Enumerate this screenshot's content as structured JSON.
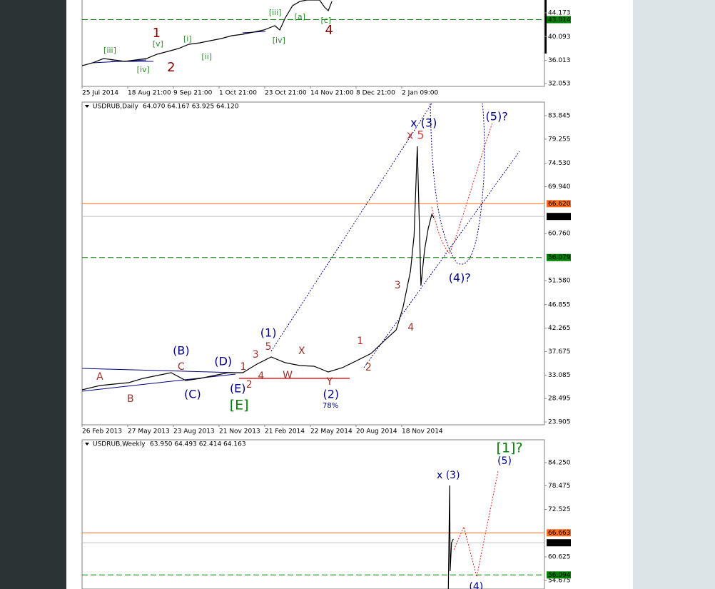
{
  "chart_data": [
    {
      "type": "line",
      "xlim": [
        0,
        10.125
      ],
      "ylim": [
        31.56,
        46.38
      ],
      "xticks": [
        {
          "value": 0,
          "label": "25 Jul 2014"
        },
        {
          "value": 1,
          "label": "18 Aug 21:00"
        },
        {
          "value": 2,
          "label": "9 Sep 21:00"
        },
        {
          "value": 3,
          "label": "1 Oct 21:00"
        },
        {
          "value": 4,
          "label": "23 Oct 21:00"
        },
        {
          "value": 5,
          "label": "14 Nov 21:00"
        },
        {
          "value": 6,
          "label": "8 Dec 21:00"
        },
        {
          "value": 7,
          "label": "2 Jan 09:00"
        }
      ],
      "yticks": [
        44.173,
        40.093,
        36.013,
        32.053
      ],
      "series": [
        {
          "color": "#000000",
          "x": [
            0,
            0.23,
            0.47,
            0.7,
            0.94,
            1.17,
            1.41,
            1.64,
            1.88,
            2.11,
            2.34,
            2.58,
            2.81,
            3.05,
            3.28,
            3.52,
            3.75,
            3.98,
            4.22,
            4.33,
            4.45,
            4.61,
            4.77,
            4.92,
            5.2,
            5.31,
            5.39,
            5.47
          ],
          "values": [
            35.11,
            35.6,
            36.34,
            36.09,
            35.85,
            36.09,
            36.34,
            37.07,
            37.56,
            38.05,
            38.79,
            39.03,
            39.4,
            39.77,
            40.26,
            40.5,
            40.87,
            41.23,
            41.97,
            41.23,
            43.32,
            45.4,
            46.13,
            46.38,
            46.38,
            45.15,
            44.54,
            46.13
          ]
        }
      ],
      "levels": [
        {
          "value": 43.014,
          "color": "#008000",
          "style": "dashed"
        }
      ],
      "annotations": [
        {
          "text": "[iii]",
          "x": 0.61,
          "y": 37.68,
          "color": "#2e8b2e"
        },
        {
          "text": "[iv]",
          "x": 1.34,
          "y": 34.38,
          "color": "#2e8b2e"
        },
        {
          "text": "[v]",
          "x": 1.66,
          "y": 38.79,
          "color": "#2e8b2e"
        },
        {
          "text": "1",
          "x": 1.63,
          "y": 40.62,
          "color": "#8b0000"
        },
        {
          "text": "2",
          "x": 1.95,
          "y": 34.75,
          "color": "#8b0000"
        },
        {
          "text": "[i]",
          "x": 2.31,
          "y": 39.64,
          "color": "#2e8b2e"
        },
        {
          "text": "[ii]",
          "x": 2.73,
          "y": 36.58,
          "color": "#2e8b2e"
        },
        {
          "text": "[iii]",
          "x": 4.23,
          "y": 44.17,
          "color": "#2e8b2e"
        },
        {
          "text": "[iv]",
          "x": 4.31,
          "y": 39.4,
          "color": "#2e8b2e"
        },
        {
          "text": "[a]",
          "x": 4.77,
          "y": 43.44,
          "color": "#2e8b2e"
        },
        {
          "text": "[c]",
          "x": 5.34,
          "y": 42.82,
          "color": "#2e8b2e"
        },
        {
          "text": "4",
          "x": 5.41,
          "y": 41.11,
          "color": "#8b0000"
        }
      ]
    },
    {
      "type": "line",
      "title": "USDRUB,Daily",
      "subtitle": "64.070 64.167 63.925 64.120",
      "xlim": [
        0,
        10.125
      ],
      "ylim": [
        23.35,
        86.5
      ],
      "xticks": [
        {
          "value": 0,
          "label": "26 Feb 2013"
        },
        {
          "value": 1,
          "label": "27 May 2013"
        },
        {
          "value": 2,
          "label": "23 Aug 2013"
        },
        {
          "value": 3,
          "label": "21 Nov 2013"
        },
        {
          "value": 4,
          "label": "21 Feb 2014"
        },
        {
          "value": 5,
          "label": "22 May 2014"
        },
        {
          "value": 6,
          "label": "20 Aug 2014"
        },
        {
          "value": 7,
          "label": "18 Nov 2014"
        }
      ],
      "yticks": [
        83.845,
        79.255,
        {
          "value": 74.53,
          "label": "74.530"
        },
        {
          "value": 69.94,
          "label": "69.940"
        },
        {
          "value": 60.76,
          "label": "60.760"
        },
        {
          "value": 51.58,
          "label": "51.580"
        },
        46.855,
        42.265,
        37.675,
        33.085,
        28.495,
        23.905
      ],
      "series": [
        {
          "color": "#000000",
          "x": [
            0,
            0.39,
            0.7,
            1.02,
            1.33,
            1.64,
            1.95,
            2.27,
            2.58,
            2.89,
            3.2,
            3.52,
            3.83,
            4.14,
            4.45,
            4.77,
            5.08,
            5.39,
            5.7,
            6.02,
            6.33,
            6.64,
            6.88,
            7.03,
            7.19,
            7.27,
            7.34,
            7.38,
            7.42,
            7.5,
            7.58,
            7.66,
            7.7
          ],
          "values": [
            30.19,
            31.03,
            31.31,
            31.59,
            32.42,
            32.99,
            33.55,
            32.01,
            32.42,
            32.99,
            33.55,
            33.55,
            35.22,
            36.62,
            35.5,
            34.94,
            34.8,
            33.69,
            34.53,
            35.92,
            37.32,
            39.97,
            41.93,
            46.4,
            53.39,
            60.37,
            77.84,
            64.56,
            50.59,
            57.58,
            61.77,
            64.56,
            63.87
          ]
        }
      ],
      "levels": [
        {
          "value": 66.62,
          "label": "66.620",
          "color": "#ff6a1a",
          "style": "solid"
        },
        {
          "value": 64.12,
          "label": "64.120",
          "color": "#c0c0c0",
          "style": "solid"
        },
        {
          "value": 56.079,
          "color": "#008000",
          "style": "dashed"
        }
      ],
      "annotations": [
        {
          "text": "A",
          "x": 0.39,
          "y": 32.71,
          "color": "#a0302a"
        },
        {
          "text": "B",
          "x": 1.06,
          "y": 28.38,
          "color": "#a0302a"
        },
        {
          "text": "C",
          "x": 2.17,
          "y": 34.66,
          "color": "#a0302a"
        },
        {
          "text": "(B)",
          "x": 2.17,
          "y": 37.74,
          "color": "#000080"
        },
        {
          "text": "(C)",
          "x": 2.42,
          "y": 29.21,
          "color": "#000080"
        },
        {
          "text": "(D)",
          "x": 3.09,
          "y": 35.64,
          "color": "#000080"
        },
        {
          "text": "(E)",
          "x": 3.41,
          "y": 30.33,
          "color": "#000080"
        },
        {
          "text": "[E]",
          "x": 3.44,
          "y": 27.12,
          "color": "#008000"
        },
        {
          "text": "1",
          "x": 3.53,
          "y": 34.66,
          "color": "#a0302a"
        },
        {
          "text": "2",
          "x": 3.66,
          "y": 31.17,
          "color": "#a0302a"
        },
        {
          "text": "3",
          "x": 3.8,
          "y": 37.04,
          "color": "#a0302a"
        },
        {
          "text": "4",
          "x": 3.92,
          "y": 32.85,
          "color": "#a0302a"
        },
        {
          "text": "5",
          "x": 4.08,
          "y": 38.58,
          "color": "#a0302a"
        },
        {
          "text": "(1)",
          "x": 4.08,
          "y": 41.23,
          "color": "#000080"
        },
        {
          "text": "W",
          "x": 4.5,
          "y": 32.99,
          "color": "#a0302a"
        },
        {
          "text": "X",
          "x": 4.81,
          "y": 37.74,
          "color": "#a0302a"
        },
        {
          "text": "Y",
          "x": 5.42,
          "y": 31.73,
          "color": "#a0302a"
        },
        {
          "text": "(2)",
          "x": 5.45,
          "y": 29.21,
          "color": "#000080"
        },
        {
          "text": "78%",
          "x": 5.44,
          "y": 27.12,
          "color": "#000080"
        },
        {
          "text": "1",
          "x": 6.09,
          "y": 39.7,
          "color": "#a0302a"
        },
        {
          "text": "2",
          "x": 6.27,
          "y": 34.53,
          "color": "#a0302a"
        },
        {
          "text": "3",
          "x": 6.91,
          "y": 50.59,
          "color": "#a0302a"
        },
        {
          "text": "4",
          "x": 7.2,
          "y": 42.35,
          "color": "#a0302a"
        },
        {
          "text": "x 5",
          "x": 7.3,
          "y": 79.93,
          "color": "#d04040"
        },
        {
          "text": "x (3)",
          "x": 7.48,
          "y": 82.31,
          "color": "#000080"
        },
        {
          "text": "(4)?",
          "x": 8.27,
          "y": 51.99,
          "color": "#000080"
        },
        {
          "text": "(5)?",
          "x": 9.08,
          "y": 83.57,
          "color": "#000080"
        }
      ]
    },
    {
      "type": "line",
      "title": "USDRUB,Weekly",
      "subtitle": "63.950 64.493 62.414 64.163",
      "xlim": [
        0,
        10.125
      ],
      "ylim": [
        52.57,
        89.98
      ],
      "yticks": [
        {
          "value": 84.25,
          "label": "84.250"
        },
        78.475,
        72.525,
        60.625,
        54.675
      ],
      "series": [
        {
          "color": "#000000",
          "x": [
            8.02,
            8.05,
            8.06,
            8.09,
            8.13
          ],
          "values": [
            52.57,
            78.52,
            57.05,
            64.21,
            65.11
          ]
        }
      ],
      "levels": [
        {
          "value": 66.663,
          "color": "#ff6a1a",
          "style": "solid"
        },
        {
          "value": 64.163,
          "color": "#c0c0c0",
          "style": "solid"
        },
        {
          "value": 56.094,
          "color": "#008000",
          "style": "dashed"
        }
      ],
      "annotations": [
        {
          "text": "x (3)",
          "x": 8.02,
          "y": 81.03,
          "color": "#000080"
        },
        {
          "text": "(5)",
          "x": 9.25,
          "y": 84.61,
          "color": "#000080"
        },
        {
          "text": "[1]?",
          "x": 9.36,
          "y": 87.83,
          "color": "#008000"
        },
        {
          "text": "(4)",
          "x": 8.63,
          "y": 53.11,
          "color": "#000080"
        }
      ]
    }
  ]
}
